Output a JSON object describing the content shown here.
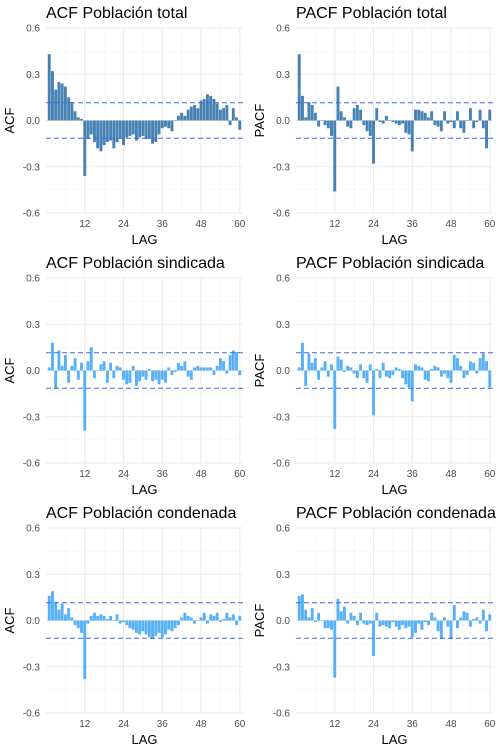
{
  "chart_data": [
    {
      "type": "bar",
      "title": "ACF Población total",
      "xlabel": "LAG",
      "ylabel": "ACF",
      "bar_color": "#4682B4",
      "xlim": [
        0,
        61
      ],
      "ylim": [
        -0.6,
        0.6
      ],
      "xticks": [
        12,
        24,
        36,
        48,
        60
      ],
      "yticks": [
        -0.6,
        -0.3,
        0.0,
        0.3,
        0.6
      ],
      "y_tick_labels": [
        "-0.6",
        "-0.3",
        "0.0",
        "0.3",
        "0.6"
      ],
      "confidence_bounds": [
        0.115,
        -0.115
      ],
      "grid": true,
      "x": [
        1,
        2,
        3,
        4,
        5,
        6,
        7,
        8,
        9,
        10,
        11,
        12,
        13,
        14,
        15,
        16,
        17,
        18,
        19,
        20,
        21,
        22,
        23,
        24,
        25,
        26,
        27,
        28,
        29,
        30,
        31,
        32,
        33,
        34,
        35,
        36,
        37,
        38,
        39,
        40,
        41,
        42,
        43,
        44,
        45,
        46,
        47,
        48,
        49,
        50,
        51,
        52,
        53,
        54,
        55,
        56,
        57,
        58,
        59,
        60
      ],
      "values": [
        0.43,
        0.32,
        0.2,
        0.25,
        0.24,
        0.22,
        0.15,
        0.12,
        0.06,
        0.02,
        0.01,
        -0.36,
        -0.12,
        -0.09,
        -0.14,
        -0.18,
        -0.2,
        -0.16,
        -0.14,
        -0.13,
        -0.18,
        -0.14,
        -0.12,
        -0.16,
        -0.11,
        -0.1,
        -0.09,
        -0.13,
        -0.11,
        -0.1,
        -0.12,
        -0.12,
        -0.15,
        -0.14,
        -0.09,
        -0.05,
        -0.04,
        -0.05,
        -0.07,
        0.0,
        0.03,
        0.05,
        0.03,
        0.07,
        0.09,
        0.1,
        0.08,
        0.13,
        0.14,
        0.17,
        0.16,
        0.14,
        0.11,
        0.07,
        0.08,
        0.1,
        -0.03,
        0.08,
        0.02,
        -0.06
      ]
    },
    {
      "type": "bar",
      "title": "PACF Población total",
      "xlabel": "LAG",
      "ylabel": "PACF",
      "bar_color": "#4682B4",
      "xlim": [
        0,
        61
      ],
      "ylim": [
        -0.6,
        0.6
      ],
      "xticks": [
        12,
        24,
        36,
        48,
        60
      ],
      "yticks": [
        -0.6,
        -0.3,
        0.0,
        0.3,
        0.6
      ],
      "y_tick_labels": [
        "-0.6",
        "-0.3",
        "0.0",
        "0.3",
        "0.6"
      ],
      "confidence_bounds": [
        0.115,
        -0.115
      ],
      "grid": true,
      "x": [
        1,
        2,
        3,
        4,
        5,
        6,
        7,
        8,
        9,
        10,
        11,
        12,
        13,
        14,
        15,
        16,
        17,
        18,
        19,
        20,
        21,
        22,
        23,
        24,
        25,
        26,
        27,
        28,
        29,
        30,
        31,
        32,
        33,
        34,
        35,
        36,
        37,
        38,
        39,
        40,
        41,
        42,
        43,
        44,
        45,
        46,
        47,
        48,
        49,
        50,
        51,
        52,
        53,
        54,
        55,
        56,
        57,
        58,
        59,
        60
      ],
      "values": [
        0.43,
        0.16,
        0.02,
        0.12,
        0.1,
        0.05,
        -0.04,
        0.0,
        -0.03,
        -0.05,
        -0.1,
        -0.46,
        0.22,
        0.06,
        0.02,
        -0.04,
        -0.05,
        0.08,
        0.1,
        0.07,
        -0.03,
        -0.07,
        -0.1,
        -0.28,
        0.08,
        -0.01,
        -0.02,
        0.03,
        0.0,
        -0.01,
        -0.02,
        -0.03,
        -0.02,
        -0.08,
        -0.09,
        -0.2,
        0.07,
        0.07,
        0.06,
        0.05,
        0.02,
        0.06,
        -0.03,
        -0.04,
        -0.07,
        0.06,
        -0.02,
        -0.01,
        -0.05,
        0.06,
        -0.05,
        -0.08,
        0.0,
        0.08,
        -0.05,
        -0.01,
        0.07,
        -0.05,
        -0.18,
        0.07
      ]
    },
    {
      "type": "bar",
      "title": "ACF Población sindicada",
      "xlabel": "LAG",
      "ylabel": "ACF",
      "bar_color": "#56B1F7",
      "xlim": [
        0,
        61
      ],
      "ylim": [
        -0.6,
        0.6
      ],
      "xticks": [
        12,
        24,
        36,
        48,
        60
      ],
      "yticks": [
        -0.6,
        -0.3,
        0.0,
        0.3,
        0.6
      ],
      "y_tick_labels": [
        "-0.6",
        "-0.3",
        "0.0",
        "0.3",
        "0.6"
      ],
      "confidence_bounds": [
        0.115,
        -0.115
      ],
      "grid": true,
      "x": [
        1,
        2,
        3,
        4,
        5,
        6,
        7,
        8,
        9,
        10,
        11,
        12,
        13,
        14,
        15,
        16,
        17,
        18,
        19,
        20,
        21,
        22,
        23,
        24,
        25,
        26,
        27,
        28,
        29,
        30,
        31,
        32,
        33,
        34,
        35,
        36,
        37,
        38,
        39,
        40,
        41,
        42,
        43,
        44,
        45,
        46,
        47,
        48,
        49,
        50,
        51,
        52,
        53,
        54,
        55,
        56,
        57,
        58,
        59,
        60
      ],
      "values": [
        0.02,
        0.18,
        -0.12,
        0.13,
        0.03,
        0.1,
        -0.08,
        0.03,
        0.08,
        -0.06,
        0.05,
        -0.39,
        0.06,
        0.15,
        -0.05,
        0.0,
        0.04,
        0.06,
        -0.08,
        0.05,
        -0.05,
        0.03,
        0.02,
        -0.06,
        -0.09,
        -0.08,
        0.03,
        -0.1,
        -0.07,
        -0.04,
        -0.06,
        0.01,
        -0.07,
        -0.06,
        -0.09,
        -0.06,
        -0.08,
        0.02,
        -0.03,
        -0.01,
        0.05,
        0.03,
        0.06,
        -0.04,
        -0.06,
        0.02,
        0.03,
        0.02,
        0.02,
        0.02,
        0.02,
        -0.03,
        0.03,
        0.08,
        0.06,
        -0.02,
        0.1,
        0.13,
        0.12,
        -0.03
      ]
    },
    {
      "type": "bar",
      "title": "PACF Población sindicada",
      "xlabel": "LAG",
      "ylabel": "PACF",
      "bar_color": "#56B1F7",
      "xlim": [
        0,
        61
      ],
      "ylim": [
        -0.6,
        0.6
      ],
      "xticks": [
        12,
        24,
        36,
        48,
        60
      ],
      "yticks": [
        -0.6,
        -0.3,
        0.0,
        0.3,
        0.6
      ],
      "y_tick_labels": [
        "-0.6",
        "-0.3",
        "0.0",
        "0.3",
        "0.6"
      ],
      "confidence_bounds": [
        0.115,
        -0.115
      ],
      "grid": true,
      "x": [
        1,
        2,
        3,
        4,
        5,
        6,
        7,
        8,
        9,
        10,
        11,
        12,
        13,
        14,
        15,
        16,
        17,
        18,
        19,
        20,
        21,
        22,
        23,
        24,
        25,
        26,
        27,
        28,
        29,
        30,
        31,
        32,
        33,
        34,
        35,
        36,
        37,
        38,
        39,
        40,
        41,
        42,
        43,
        44,
        45,
        46,
        47,
        48,
        49,
        50,
        51,
        52,
        53,
        54,
        55,
        56,
        57,
        58,
        59,
        60
      ],
      "values": [
        0.02,
        0.18,
        -0.1,
        0.11,
        0.05,
        0.08,
        -0.06,
        0.02,
        0.06,
        -0.04,
        0.04,
        -0.38,
        0.09,
        0.07,
        -0.01,
        0.03,
        0.02,
        -0.02,
        -0.05,
        0.04,
        -0.05,
        -0.08,
        0.04,
        -0.29,
        0.01,
        -0.05,
        0.05,
        -0.04,
        -0.05,
        -0.03,
        0.02,
        0.01,
        -0.05,
        -0.09,
        -0.11,
        -0.2,
        0.04,
        0.03,
        0.02,
        -0.06,
        -0.07,
        0.01,
        0.03,
        0.02,
        -0.04,
        -0.02,
        -0.05,
        -0.08,
        0.1,
        0.08,
        0.03,
        -0.05,
        -0.03,
        0.06,
        0.05,
        -0.02,
        0.08,
        0.11,
        0.06,
        -0.11
      ]
    },
    {
      "type": "bar",
      "title": "ACF Población condenada",
      "xlabel": "LAG",
      "ylabel": "ACF",
      "bar_color": "#56B1F7",
      "xlim": [
        0,
        61
      ],
      "ylim": [
        -0.6,
        0.6
      ],
      "xticks": [
        12,
        24,
        36,
        48,
        60
      ],
      "yticks": [
        -0.6,
        -0.3,
        0.0,
        0.3,
        0.6
      ],
      "y_tick_labels": [
        "-0.6",
        "-0.3",
        "0.0",
        "0.3",
        "0.6"
      ],
      "confidence_bounds": [
        0.115,
        -0.115
      ],
      "grid": true,
      "x": [
        1,
        2,
        3,
        4,
        5,
        6,
        7,
        8,
        9,
        10,
        11,
        12,
        13,
        14,
        15,
        16,
        17,
        18,
        19,
        20,
        21,
        22,
        23,
        24,
        25,
        26,
        27,
        28,
        29,
        30,
        31,
        32,
        33,
        34,
        35,
        36,
        37,
        38,
        39,
        40,
        41,
        42,
        43,
        44,
        45,
        46,
        47,
        48,
        49,
        50,
        51,
        52,
        53,
        54,
        55,
        56,
        57,
        58,
        59,
        60
      ],
      "values": [
        0.16,
        0.19,
        0.12,
        0.07,
        0.11,
        0.04,
        0.08,
        0.02,
        -0.03,
        -0.05,
        -0.08,
        -0.38,
        -0.02,
        0.03,
        0.05,
        0.03,
        0.04,
        0.03,
        0.01,
        0.03,
        0.0,
        0.04,
        -0.02,
        -0.01,
        -0.03,
        -0.05,
        -0.06,
        -0.08,
        -0.09,
        -0.07,
        -0.09,
        -0.11,
        -0.12,
        -0.1,
        -0.08,
        -0.11,
        -0.09,
        -0.06,
        -0.07,
        -0.05,
        -0.03,
        0.02,
        0.05,
        0.03,
        0.02,
        -0.02,
        0.0,
        0.02,
        0.05,
        -0.02,
        0.04,
        0.03,
        0.05,
        -0.01,
        0.01,
        0.05,
        0.02,
        0.04,
        -0.03,
        0.03
      ]
    },
    {
      "type": "bar",
      "title": "PACF Población condenada",
      "xlabel": "LAG",
      "ylabel": "PACF",
      "bar_color": "#56B1F7",
      "xlim": [
        0,
        61
      ],
      "ylim": [
        -0.6,
        0.6
      ],
      "xticks": [
        12,
        24,
        36,
        48,
        60
      ],
      "yticks": [
        -0.6,
        -0.3,
        0.0,
        0.3,
        0.6
      ],
      "y_tick_labels": [
        "-0.6",
        "-0.3",
        "0.0",
        "0.3",
        "0.6"
      ],
      "confidence_bounds": [
        0.115,
        -0.115
      ],
      "grid": true,
      "x": [
        1,
        2,
        3,
        4,
        5,
        6,
        7,
        8,
        9,
        10,
        11,
        12,
        13,
        14,
        15,
        16,
        17,
        18,
        19,
        20,
        21,
        22,
        23,
        24,
        25,
        26,
        27,
        28,
        29,
        30,
        31,
        32,
        33,
        34,
        35,
        36,
        37,
        38,
        39,
        40,
        41,
        42,
        43,
        44,
        45,
        46,
        47,
        48,
        49,
        50,
        51,
        52,
        53,
        54,
        55,
        56,
        57,
        58,
        59,
        60
      ],
      "values": [
        0.16,
        0.17,
        0.07,
        0.02,
        0.08,
        -0.01,
        0.05,
        0.0,
        -0.05,
        -0.05,
        -0.06,
        -0.37,
        0.14,
        0.06,
        0.09,
        -0.02,
        0.05,
        0.03,
        -0.03,
        0.05,
        -0.02,
        -0.03,
        -0.02,
        -0.23,
        0.05,
        -0.04,
        -0.03,
        -0.04,
        -0.05,
        -0.01,
        -0.04,
        -0.06,
        -0.03,
        -0.05,
        -0.04,
        -0.11,
        -0.08,
        -0.02,
        -0.06,
        -0.01,
        -0.03,
        0.05,
        0.02,
        -0.07,
        -0.12,
        0.02,
        -0.04,
        -0.12,
        0.1,
        -0.05,
        0.02,
        0.06,
        0.05,
        -0.04,
        0.01,
        0.02,
        -0.02,
        0.07,
        -0.07,
        0.04
      ]
    }
  ]
}
